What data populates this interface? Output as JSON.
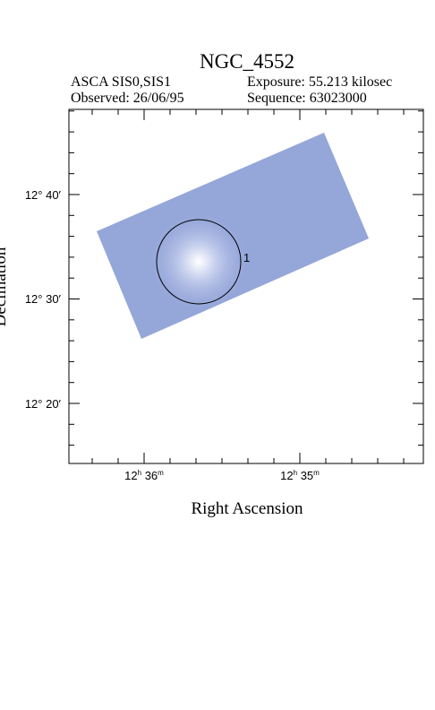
{
  "header": {
    "title": "NGC_4552",
    "instrument": "ASCA SIS0,SIS1",
    "exposure": "Exposure: 55.213 kilosec",
    "observed": "Observed: 26/06/95",
    "sequence": "Sequence: 63023000"
  },
  "axes": {
    "x_label": "Right Ascension",
    "y_label": "Declination",
    "x_ticks": [
      [
        "12",
        "h",
        " 36",
        "m"
      ],
      [
        "12",
        "h",
        " 35",
        "m"
      ]
    ],
    "y_ticks": [
      "12° 40′",
      "12° 30′",
      "12° 20′"
    ]
  },
  "regions": [
    {
      "label": "1"
    }
  ]
}
